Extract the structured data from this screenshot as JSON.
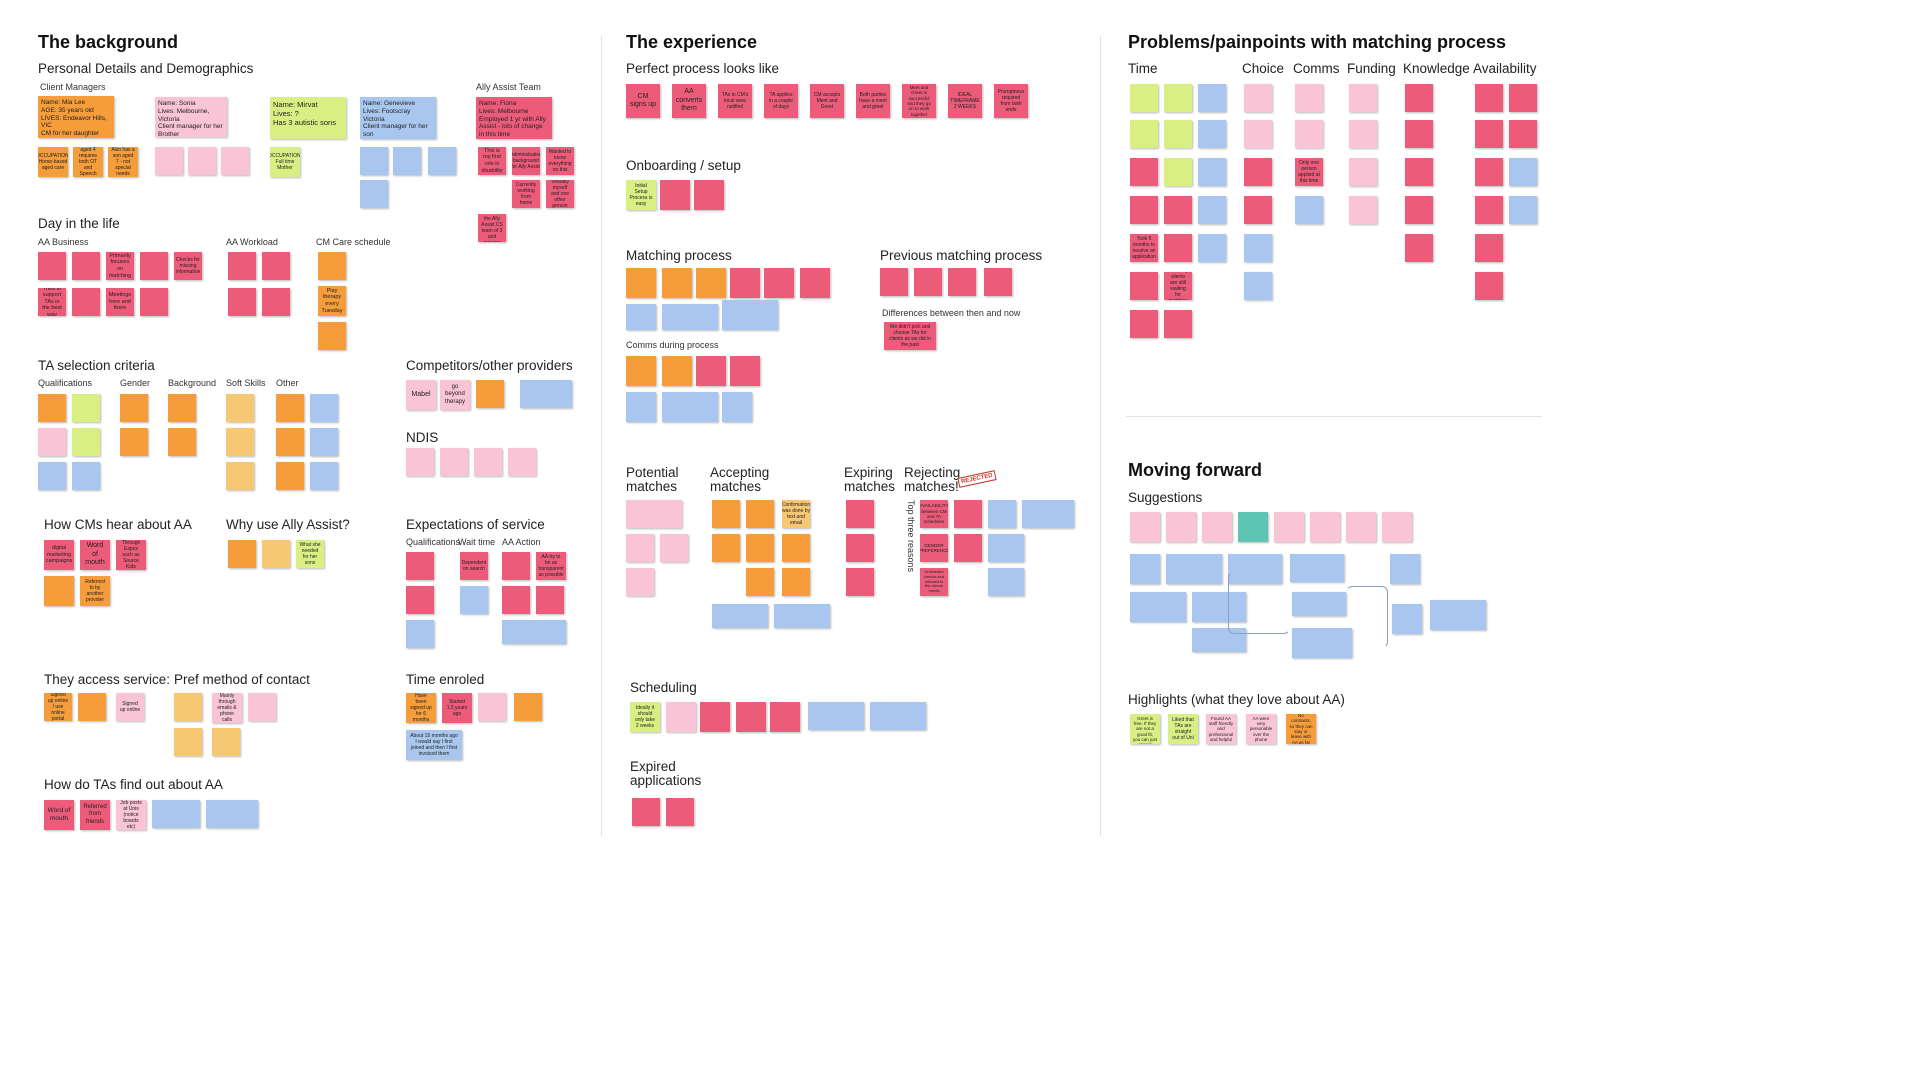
{
  "sections": {
    "background": "The background",
    "experience": "The experience",
    "problems": "Problems/painpoints with matching process",
    "moving_forward": "Moving forward"
  },
  "bg": {
    "personal": "Personal Details and Demographics",
    "client_managers": "Client Managers",
    "ally_team": "Ally Assist Team",
    "day": "Day in the life",
    "aa_business": "AA Business",
    "aa_workload": "AA Workload",
    "cm_care": "CM Care schedule",
    "ta_selection": "TA selection criteria",
    "qualifications": "Qualifications",
    "gender": "Gender",
    "background_sub": "Background",
    "soft_skills": "Soft Skills",
    "other": "Other",
    "competitors": "Competitors/other providers",
    "ndis": "NDIS",
    "how_hear": "How CMs hear about AA",
    "why_use": "Why use Ally Assist?",
    "expectations": "Expectations of service",
    "exp_qual": "Qualifications",
    "wait_time": "Wait time",
    "aa_action": "AA Action",
    "access": "They access service:",
    "pref_contact": "Pref method of contact",
    "time_enrolled": "Time enroled",
    "how_tas": "How do TAs find out about AA"
  },
  "notes_bg": {
    "mia": "Name: Mia Lee\nAGE: 35 years old\nLIVES: Endeavor Hills, VIC\nCM for her daughter",
    "sonia": "Name: Sonia\nLives: Melbourne, Victoria\nClient manager for her Brother",
    "mirvat": "Name: Mirvat\nLives: ?\nHas 3 autistic sons",
    "genevieve": "Name: Genevieve\nLives: Footscray Victoria\nClient manager for her son",
    "fiona": "Name: Fiona\nLives: Melbourne\nEmployed 1 yr with Ally Assist - lots of change in this time",
    "mia_occ": "OCCUPATION: Home-based aged care",
    "mia_dau": "Daughter aged 4 requires both OT and Speech Therapy",
    "mia_son": "Also has a son aged 7 - not special needs",
    "mirvat_occ": "OCCUPATION: Full time Mother",
    "fiona_1": "This is my first role in disability",
    "fiona_2": "Administration background for Ally Assist",
    "fiona_3": "Wanted to know everything on this",
    "fiona_4": "Currently working from home",
    "fiona_5": "Virtually myself and one other person",
    "fiona_6": "Part of the Ally Assist CS team of 3 and growing",
    "biz_1": "Primarily focuses on matching",
    "biz_2": "Checks for missing information",
    "biz_3": "Tries to support TAs in the best way",
    "biz_4": "Meetings here and there",
    "cm_1": "Play therapy every Tuesday",
    "comp_1": "Mabel",
    "comp_2": "go beyond therapy",
    "hear_1": "digital marketing campaigns",
    "hear_2": "Word of mouth",
    "hear_3": "Through Expos such as Source Kids",
    "hear_4": "Referred to by another provider",
    "why_1": "What she needed for her sons",
    "wait_1": "Dependent on search",
    "action_1": "AA try to be as transparent as possible",
    "pref_1": "Mainly through emails & phone calls",
    "access_1": "Signed up online / use online portal",
    "access_2": "Signed up online",
    "enrol_1": "Have been signed up for 6 months",
    "enrol_2": "Started 1.5 years ago",
    "enrol_3": "About 15 months ago I would say I first joined and then I first invoiced them",
    "ta_1": "Word of mouth",
    "ta_2": "Referred from friends",
    "ta_3": "Job posts at Unis (notice boards etc)"
  },
  "exp": {
    "perfect": "Perfect process looks like",
    "onboarding": "Onboarding / setup",
    "matching": "Matching process",
    "previous": "Previous matching process",
    "differences": "Differences between then and now",
    "comms": "Comms during process",
    "potential": "Potential matches",
    "accepting": "Accepting matches",
    "expiring": "Expiring matches",
    "rejecting": "Rejecting matches!",
    "rejected_stamp": "REJECTED",
    "top_three": "Top three reasons",
    "scheduling": "Scheduling",
    "expired": "Expired applications"
  },
  "notes_exp": {
    "p1": "CM signs up",
    "p2": "AA converts them",
    "p3": "TAs in CM's local area notified",
    "p4": "TA applies in a couple of days",
    "p5": "CM accepts Meet and Greet",
    "p6": "Both parties have a meet and greet",
    "p7": "Meet and Greet is successful and they go on to work together",
    "p8": "IDEAL TIMEFRAME 2 WEEKS",
    "p9": "Promptness required from both ends",
    "o1": "Initial Setup Process is easy",
    "diff_1": "We didn't pick and choose TAs for clients as we did in the past",
    "acc_1": "Confirmation was done by text and email",
    "sched_1": "Ideally it should only take 2 weeks",
    "rej_1": "AVAILABILITY between CM and TA schedules",
    "rej_2": "GENDER PREFERENCE",
    "rej_3": "Unfinished checks and relevant to the clients needs"
  },
  "prob": {
    "time": "Time",
    "choice": "Choice",
    "comms": "Comms",
    "funding": "Funding",
    "knowledge": "Knowledge",
    "availability": "Availability"
  },
  "notes_prob": {
    "t1": "Took 5 months to receive an application",
    "t2": "So many clients are still waiting for matches",
    "c1": "Only one person applied at this time"
  },
  "mf": {
    "suggestions": "Suggestions",
    "highlights": "Highlights (what they love about AA)"
  },
  "notes_mf": {
    "h1": "Meet and Greet is free. If they are not a good fit, you can just cancel",
    "h2": "Liked that TAs are straight out of Uni",
    "h3": "Found AA staff friendly and professional and helpful",
    "h4": "AA were very personable over the phone",
    "h5": "No contracts, so they can stay or leave with AA as far"
  },
  "colors": {
    "yellow": "#f7c873",
    "orange": "#f59c3b",
    "red": "#ec5c7a",
    "pink": "#f8c4d6",
    "green": "#d9ef84",
    "blue": "#a8c6ee",
    "teal": "#5ec4b4"
  }
}
